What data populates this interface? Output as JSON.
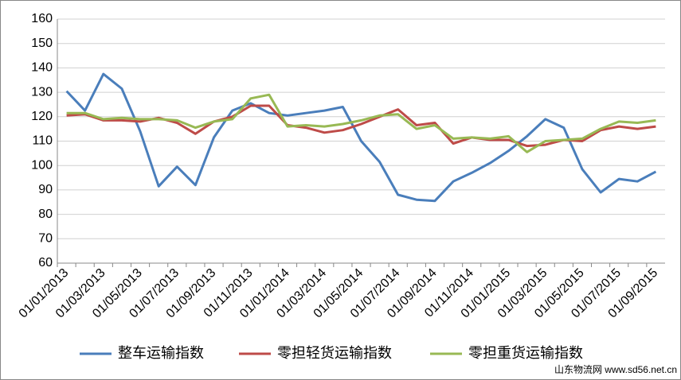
{
  "chart_data": {
    "type": "line",
    "categories": [
      "01/01/2013",
      null,
      "01/03/2013",
      null,
      "01/05/2013",
      null,
      "01/07/2013",
      null,
      "01/09/2013",
      null,
      "01/11/2013",
      null,
      "01/01/2014",
      null,
      "01/03/2014",
      null,
      "01/05/2014",
      null,
      "01/07/2014",
      null,
      "01/09/2014",
      null,
      "01/11/2014",
      null,
      "01/01/2015",
      null,
      "01/03/2015",
      null,
      "01/05/2015",
      null,
      "01/07/2015",
      null,
      "01/09/2015"
    ],
    "series": [
      {
        "name": "整车运输指数",
        "color": "#4a7ebb",
        "values": [
          130.5,
          122.5,
          137.5,
          131.5,
          114,
          91.5,
          99.5,
          92,
          111.5,
          122.5,
          125.5,
          121.5,
          120.5,
          121.5,
          122.5,
          124,
          110,
          101.5,
          88,
          86,
          85.5,
          93.5,
          97,
          101,
          106,
          112,
          119,
          115.5,
          98.5,
          89,
          94.5,
          93.5,
          97.5
        ]
      },
      {
        "name": "零担轻货运输指数",
        "color": "#be4b48",
        "values": [
          120.5,
          121,
          118.5,
          118.5,
          118,
          119.5,
          117.5,
          113,
          118,
          120,
          124.5,
          124.5,
          116.5,
          115.5,
          113.5,
          114.5,
          117,
          120,
          123,
          116.5,
          117.5,
          109,
          111.5,
          110.5,
          110.5,
          108,
          108.5,
          110.5,
          110,
          114.5,
          116,
          115,
          116
        ]
      },
      {
        "name": "零担重货运输指数",
        "color": "#98b954",
        "values": [
          121.5,
          121.5,
          119,
          119.5,
          119,
          119,
          118.5,
          115.5,
          118,
          119,
          127.5,
          129,
          116,
          116.5,
          116,
          117,
          118.5,
          120.5,
          121,
          115,
          116.5,
          111,
          111.5,
          111,
          112,
          105.5,
          110,
          110.5,
          111,
          115,
          118,
          117.5,
          118.5
        ]
      }
    ],
    "ylim": [
      60,
      160
    ],
    "yticks": [
      60,
      70,
      80,
      90,
      100,
      110,
      120,
      130,
      140,
      150,
      160
    ],
    "grid": true,
    "watermark": "山东物流网 www.sd56.net.cn"
  }
}
